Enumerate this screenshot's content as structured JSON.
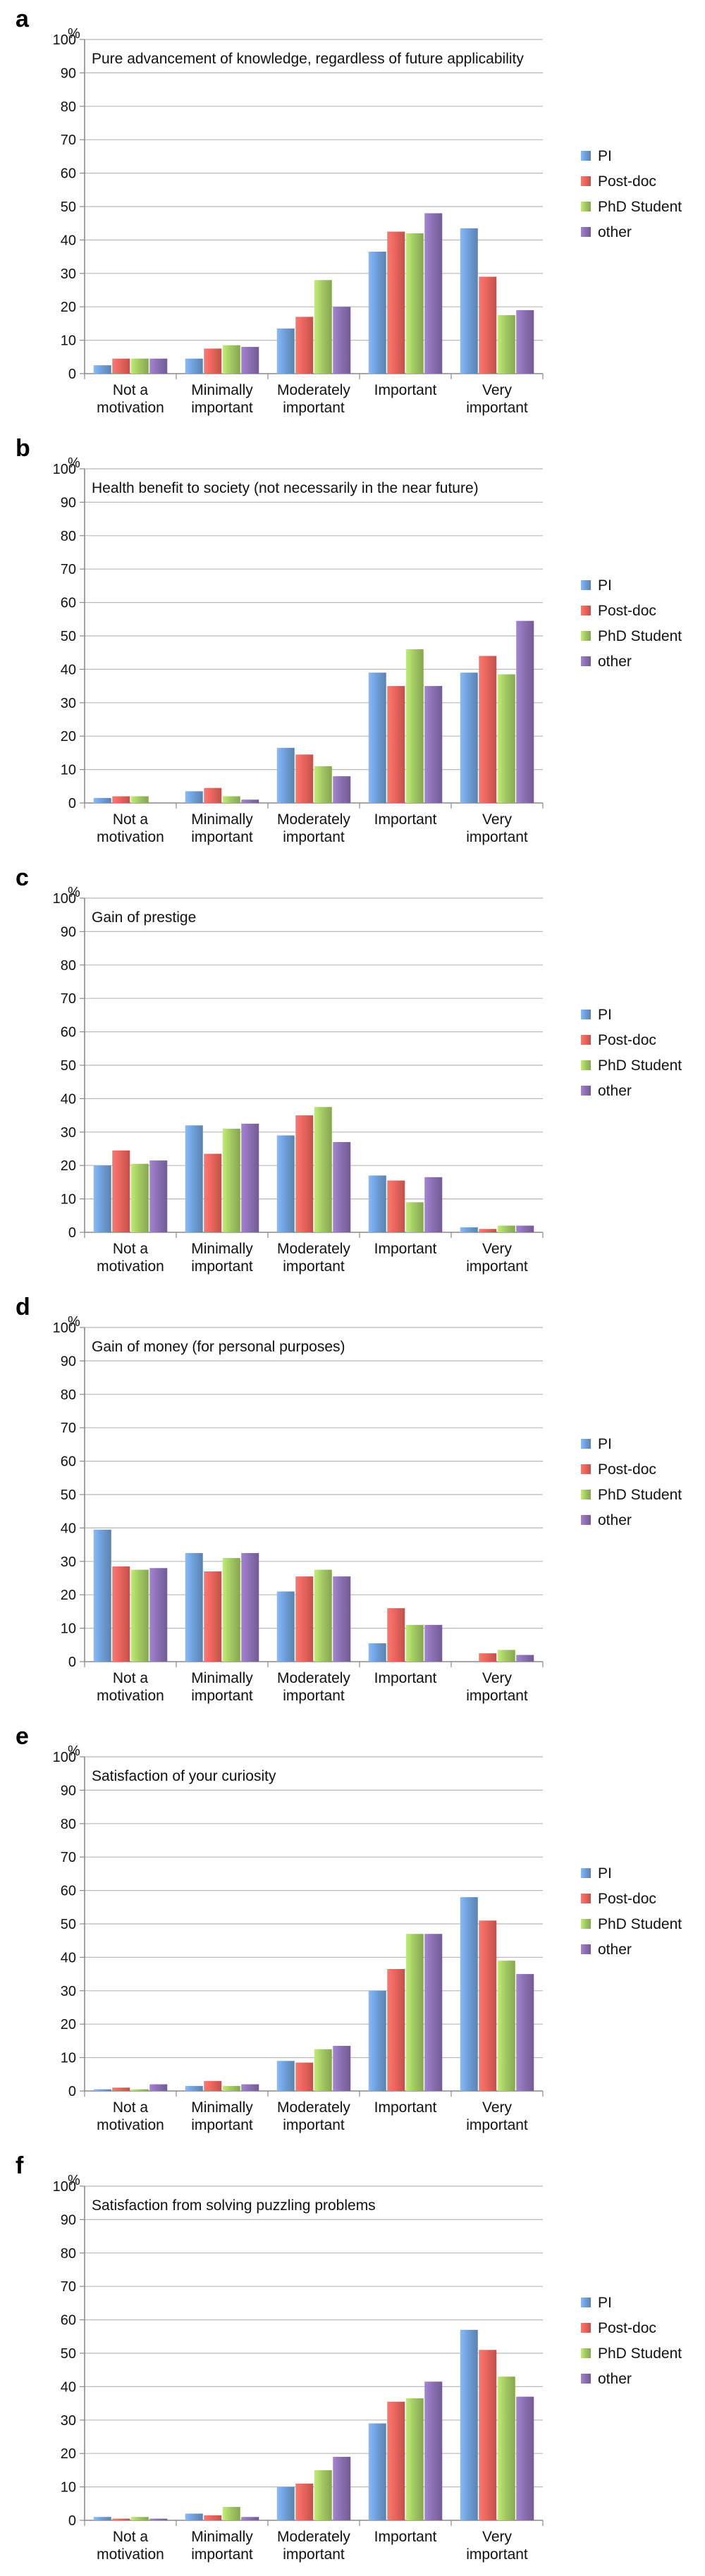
{
  "colors": {
    "PI": "#6f9fd8",
    "Post-doc": "#e8655d",
    "PhD Student": "#a3c963",
    "other": "#8b70b3",
    "grid": "#b9b9b9",
    "axis": "#8a8a8a"
  },
  "chart_data": [
    {
      "panel": "a",
      "type": "bar",
      "title": "Pure advancement of knowledge, regardless of future applicability",
      "ylabel": "%",
      "ylim": [
        0,
        100
      ],
      "yticks": [
        0,
        10,
        20,
        30,
        40,
        50,
        60,
        70,
        80,
        90,
        100
      ],
      "categories": [
        [
          "Not a",
          "motivation"
        ],
        [
          "Minimally",
          "important"
        ],
        [
          "Moderately",
          "important"
        ],
        [
          "Important"
        ],
        [
          "Very",
          "important"
        ]
      ],
      "legend": "right",
      "series": [
        {
          "name": "PI",
          "values": [
            2.5,
            4.5,
            13.5,
            36.5,
            43.5
          ]
        },
        {
          "name": "Post-doc",
          "values": [
            4.5,
            7.5,
            17,
            42.5,
            29
          ]
        },
        {
          "name": "PhD Student",
          "values": [
            4.5,
            8.5,
            28,
            42,
            17.5
          ]
        },
        {
          "name": "other",
          "values": [
            4.5,
            8,
            20,
            48,
            19
          ]
        }
      ]
    },
    {
      "panel": "b",
      "type": "bar",
      "title": "Health benefit to society (not necessarily in the near future)",
      "ylabel": "%",
      "ylim": [
        0,
        100
      ],
      "yticks": [
        0,
        10,
        20,
        30,
        40,
        50,
        60,
        70,
        80,
        90,
        100
      ],
      "categories": [
        [
          "Not a",
          "motivation"
        ],
        [
          "Minimally",
          "important"
        ],
        [
          "Moderately",
          "important"
        ],
        [
          "Important"
        ],
        [
          "Very",
          "important"
        ]
      ],
      "legend": "right",
      "series": [
        {
          "name": "PI",
          "values": [
            1.5,
            3.5,
            16.5,
            39,
            39
          ]
        },
        {
          "name": "Post-doc",
          "values": [
            2,
            4.5,
            14.5,
            35,
            44
          ]
        },
        {
          "name": "PhD Student",
          "values": [
            2,
            2,
            11,
            46,
            38.5
          ]
        },
        {
          "name": "other",
          "values": [
            0,
            1,
            8,
            35,
            54.5
          ]
        }
      ]
    },
    {
      "panel": "c",
      "type": "bar",
      "title": "Gain of prestige",
      "ylabel": "%",
      "ylim": [
        0,
        100
      ],
      "yticks": [
        0,
        10,
        20,
        30,
        40,
        50,
        60,
        70,
        80,
        90,
        100
      ],
      "categories": [
        [
          "Not a",
          "motivation"
        ],
        [
          "Minimally",
          "important"
        ],
        [
          "Moderately",
          "important"
        ],
        [
          "Important"
        ],
        [
          "Very",
          "important"
        ]
      ],
      "legend": "right",
      "series": [
        {
          "name": "PI",
          "values": [
            20,
            32,
            29,
            17,
            1.5
          ]
        },
        {
          "name": "Post-doc",
          "values": [
            24.5,
            23.5,
            35,
            15.5,
            1
          ]
        },
        {
          "name": "PhD Student",
          "values": [
            20.5,
            31,
            37.5,
            9,
            2
          ]
        },
        {
          "name": "other",
          "values": [
            21.5,
            32.5,
            27,
            16.5,
            2
          ]
        }
      ]
    },
    {
      "panel": "d",
      "type": "bar",
      "title": "Gain of money (for personal purposes)",
      "ylabel": "%",
      "ylim": [
        0,
        100
      ],
      "yticks": [
        0,
        10,
        20,
        30,
        40,
        50,
        60,
        70,
        80,
        90,
        100
      ],
      "categories": [
        [
          "Not a",
          "motivation"
        ],
        [
          "Minimally",
          "important"
        ],
        [
          "Moderately",
          "important"
        ],
        [
          "Important"
        ],
        [
          "Very",
          "important"
        ]
      ],
      "legend": "right",
      "series": [
        {
          "name": "PI",
          "values": [
            39.5,
            32.5,
            21,
            5.5,
            0
          ]
        },
        {
          "name": "Post-doc",
          "values": [
            28.5,
            27,
            25.5,
            16,
            2.5
          ]
        },
        {
          "name": "PhD Student",
          "values": [
            27.5,
            31,
            27.5,
            11,
            3.5
          ]
        },
        {
          "name": "other",
          "values": [
            28,
            32.5,
            25.5,
            11,
            2
          ]
        }
      ]
    },
    {
      "panel": "e",
      "type": "bar",
      "title": "Satisfaction of your curiosity",
      "ylabel": "%",
      "ylim": [
        0,
        100
      ],
      "yticks": [
        0,
        10,
        20,
        30,
        40,
        50,
        60,
        70,
        80,
        90,
        100
      ],
      "categories": [
        [
          "Not a",
          "motivation"
        ],
        [
          "Minimally",
          "important"
        ],
        [
          "Moderately",
          "important"
        ],
        [
          "Important"
        ],
        [
          "Very",
          "important"
        ]
      ],
      "legend": "right",
      "series": [
        {
          "name": "PI",
          "values": [
            0.5,
            1.5,
            9,
            30,
            58
          ]
        },
        {
          "name": "Post-doc",
          "values": [
            1,
            3,
            8.5,
            36.5,
            51
          ]
        },
        {
          "name": "PhD Student",
          "values": [
            0.5,
            1.5,
            12.5,
            47,
            39
          ]
        },
        {
          "name": "other",
          "values": [
            2,
            2,
            13.5,
            47,
            35
          ]
        }
      ]
    },
    {
      "panel": "f",
      "type": "bar",
      "title": "Satisfaction from solving puzzling problems",
      "ylabel": "%",
      "ylim": [
        0,
        100
      ],
      "yticks": [
        0,
        10,
        20,
        30,
        40,
        50,
        60,
        70,
        80,
        90,
        100
      ],
      "categories": [
        [
          "Not a",
          "motivation"
        ],
        [
          "Minimally",
          "important"
        ],
        [
          "Moderately",
          "important"
        ],
        [
          "Important"
        ],
        [
          "Very",
          "important"
        ]
      ],
      "legend": "right",
      "series": [
        {
          "name": "PI",
          "values": [
            1,
            2,
            10,
            29,
            57
          ]
        },
        {
          "name": "Post-doc",
          "values": [
            0.5,
            1.5,
            11,
            35.5,
            51
          ]
        },
        {
          "name": "PhD Student",
          "values": [
            1,
            4,
            15,
            36.5,
            43
          ]
        },
        {
          "name": "other",
          "values": [
            0.5,
            1,
            19,
            41.5,
            37
          ]
        }
      ]
    }
  ]
}
